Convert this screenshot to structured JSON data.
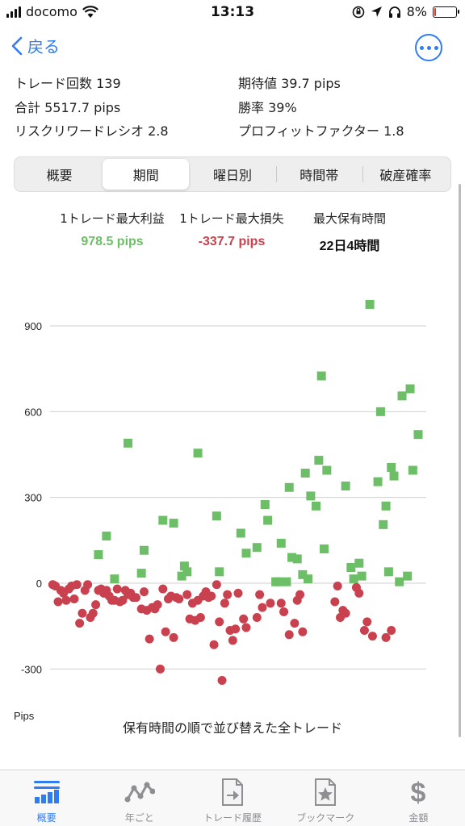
{
  "status_bar": {
    "carrier": "docomo",
    "time": "13:13",
    "battery": "8%"
  },
  "nav": {
    "back_label": "戻る"
  },
  "stats": {
    "trade_count": "トレード回数 139",
    "expected_value": "期待値 39.7 pips",
    "total": "合計 5517.7 pips",
    "win_rate": "勝率 39%",
    "risk_reward": "リスクリワードレシオ 2.8",
    "profit_factor": "プロフィットファクター 1.8"
  },
  "tabs_segment": [
    "概要",
    "期間",
    "曜日別",
    "時間帯",
    "破産確率"
  ],
  "tabs_segment_active": 1,
  "summary": {
    "max_profit_label": "1トレード最大利益",
    "max_profit_value": "978.5 pips",
    "max_loss_label": "1トレード最大損失",
    "max_loss_value": "-337.7 pips",
    "max_hold_label": "最大保有時間",
    "max_hold_value": "22日4時間"
  },
  "colors": {
    "accent": "#2f7cf6",
    "profit": "#6dbf67",
    "loss": "#c9414e"
  },
  "chart_data": {
    "type": "scatter",
    "title": "",
    "xlabel": "保有時間の順で並び替えた全トレード",
    "ylabel": "Pips",
    "y_ticks": [
      900,
      600,
      300,
      0,
      -300
    ],
    "ylim": [
      -345,
      1010
    ],
    "xlim": [
      0,
      140
    ],
    "grid": true,
    "legend": "none",
    "series": [
      {
        "marker": "square",
        "color": "#6dbf67",
        "points": [
          [
            18,
            100
          ],
          [
            21,
            165
          ],
          [
            24,
            15
          ],
          [
            29,
            490
          ],
          [
            34,
            35
          ],
          [
            35,
            115
          ],
          [
            42,
            220
          ],
          [
            46,
            210
          ],
          [
            49,
            25
          ],
          [
            50,
            60
          ],
          [
            51,
            40
          ],
          [
            55,
            455
          ],
          [
            62,
            235
          ],
          [
            63,
            40
          ],
          [
            71,
            175
          ],
          [
            73,
            105
          ],
          [
            77,
            125
          ],
          [
            80,
            275
          ],
          [
            81,
            220
          ],
          [
            84,
            5
          ],
          [
            85,
            5
          ],
          [
            86,
            140
          ],
          [
            88,
            5
          ],
          [
            89,
            335
          ],
          [
            90,
            90
          ],
          [
            92,
            85
          ],
          [
            94,
            30
          ],
          [
            95,
            385
          ],
          [
            96,
            15
          ],
          [
            97,
            305
          ],
          [
            99,
            270
          ],
          [
            100,
            430
          ],
          [
            101,
            725
          ],
          [
            102,
            120
          ],
          [
            103,
            395
          ],
          [
            110,
            340
          ],
          [
            112,
            55
          ],
          [
            113,
            15
          ],
          [
            115,
            70
          ],
          [
            116,
            25
          ],
          [
            119,
            975
          ],
          [
            122,
            355
          ],
          [
            123,
            600
          ],
          [
            124,
            205
          ],
          [
            125,
            270
          ],
          [
            126,
            40
          ],
          [
            127,
            405
          ],
          [
            128,
            375
          ],
          [
            130,
            5
          ],
          [
            131,
            655
          ],
          [
            133,
            25
          ],
          [
            134,
            680
          ],
          [
            135,
            395
          ],
          [
            137,
            520
          ]
        ]
      },
      {
        "marker": "circle",
        "color": "#c9414e",
        "points": [
          [
            1,
            -5
          ],
          [
            2,
            -10
          ],
          [
            3,
            -65
          ],
          [
            4,
            -25
          ],
          [
            5,
            -35
          ],
          [
            6,
            -60
          ],
          [
            7,
            -20
          ],
          [
            8,
            -10
          ],
          [
            9,
            -55
          ],
          [
            10,
            -5
          ],
          [
            11,
            -140
          ],
          [
            12,
            -105
          ],
          [
            13,
            -25
          ],
          [
            14,
            -5
          ],
          [
            15,
            -120
          ],
          [
            16,
            -105
          ],
          [
            17,
            -75
          ],
          [
            18,
            -25
          ],
          [
            19,
            -20
          ],
          [
            20,
            -35
          ],
          [
            21,
            -25
          ],
          [
            22,
            -45
          ],
          [
            23,
            -60
          ],
          [
            24,
            -60
          ],
          [
            25,
            -20
          ],
          [
            26,
            -65
          ],
          [
            27,
            -60
          ],
          [
            28,
            -25
          ],
          [
            29,
            -40
          ],
          [
            30,
            -35
          ],
          [
            31,
            -50
          ],
          [
            32,
            -50
          ],
          [
            34,
            -90
          ],
          [
            35,
            -30
          ],
          [
            36,
            -95
          ],
          [
            37,
            -195
          ],
          [
            38,
            -85
          ],
          [
            39,
            -90
          ],
          [
            40,
            -75
          ],
          [
            41,
            -300
          ],
          [
            42,
            -20
          ],
          [
            43,
            -170
          ],
          [
            44,
            -55
          ],
          [
            45,
            -45
          ],
          [
            46,
            -190
          ],
          [
            47,
            -50
          ],
          [
            48,
            -55
          ],
          [
            51,
            -40
          ],
          [
            52,
            -125
          ],
          [
            53,
            -70
          ],
          [
            54,
            -130
          ],
          [
            55,
            -60
          ],
          [
            56,
            -120
          ],
          [
            57,
            -45
          ],
          [
            58,
            -30
          ],
          [
            59,
            -50
          ],
          [
            60,
            -45
          ],
          [
            61,
            -215
          ],
          [
            62,
            -5
          ],
          [
            63,
            -135
          ],
          [
            64,
            -340
          ],
          [
            65,
            -70
          ],
          [
            66,
            -40
          ],
          [
            67,
            -165
          ],
          [
            68,
            -200
          ],
          [
            69,
            -160
          ],
          [
            70,
            -35
          ],
          [
            72,
            -125
          ],
          [
            73,
            -155
          ],
          [
            77,
            -120
          ],
          [
            78,
            -40
          ],
          [
            79,
            -85
          ],
          [
            82,
            -70
          ],
          [
            86,
            -70
          ],
          [
            87,
            -100
          ],
          [
            89,
            -180
          ],
          [
            91,
            -140
          ],
          [
            92,
            -60
          ],
          [
            93,
            -40
          ],
          [
            94,
            -170
          ],
          [
            106,
            -65
          ],
          [
            107,
            -10
          ],
          [
            108,
            -120
          ],
          [
            109,
            -95
          ],
          [
            110,
            -105
          ],
          [
            114,
            -15
          ],
          [
            115,
            -35
          ],
          [
            117,
            -165
          ],
          [
            118,
            -135
          ],
          [
            120,
            -185
          ],
          [
            125,
            -190
          ],
          [
            127,
            -165
          ]
        ]
      }
    ]
  },
  "tab_bar": [
    {
      "label": "概要",
      "icon": "overview-icon"
    },
    {
      "label": "年ごと",
      "icon": "trend-icon"
    },
    {
      "label": "トレード履歴",
      "icon": "trade-history-icon"
    },
    {
      "label": "ブックマーク",
      "icon": "bookmark-icon"
    },
    {
      "label": "金額",
      "icon": "dollar-icon"
    }
  ]
}
